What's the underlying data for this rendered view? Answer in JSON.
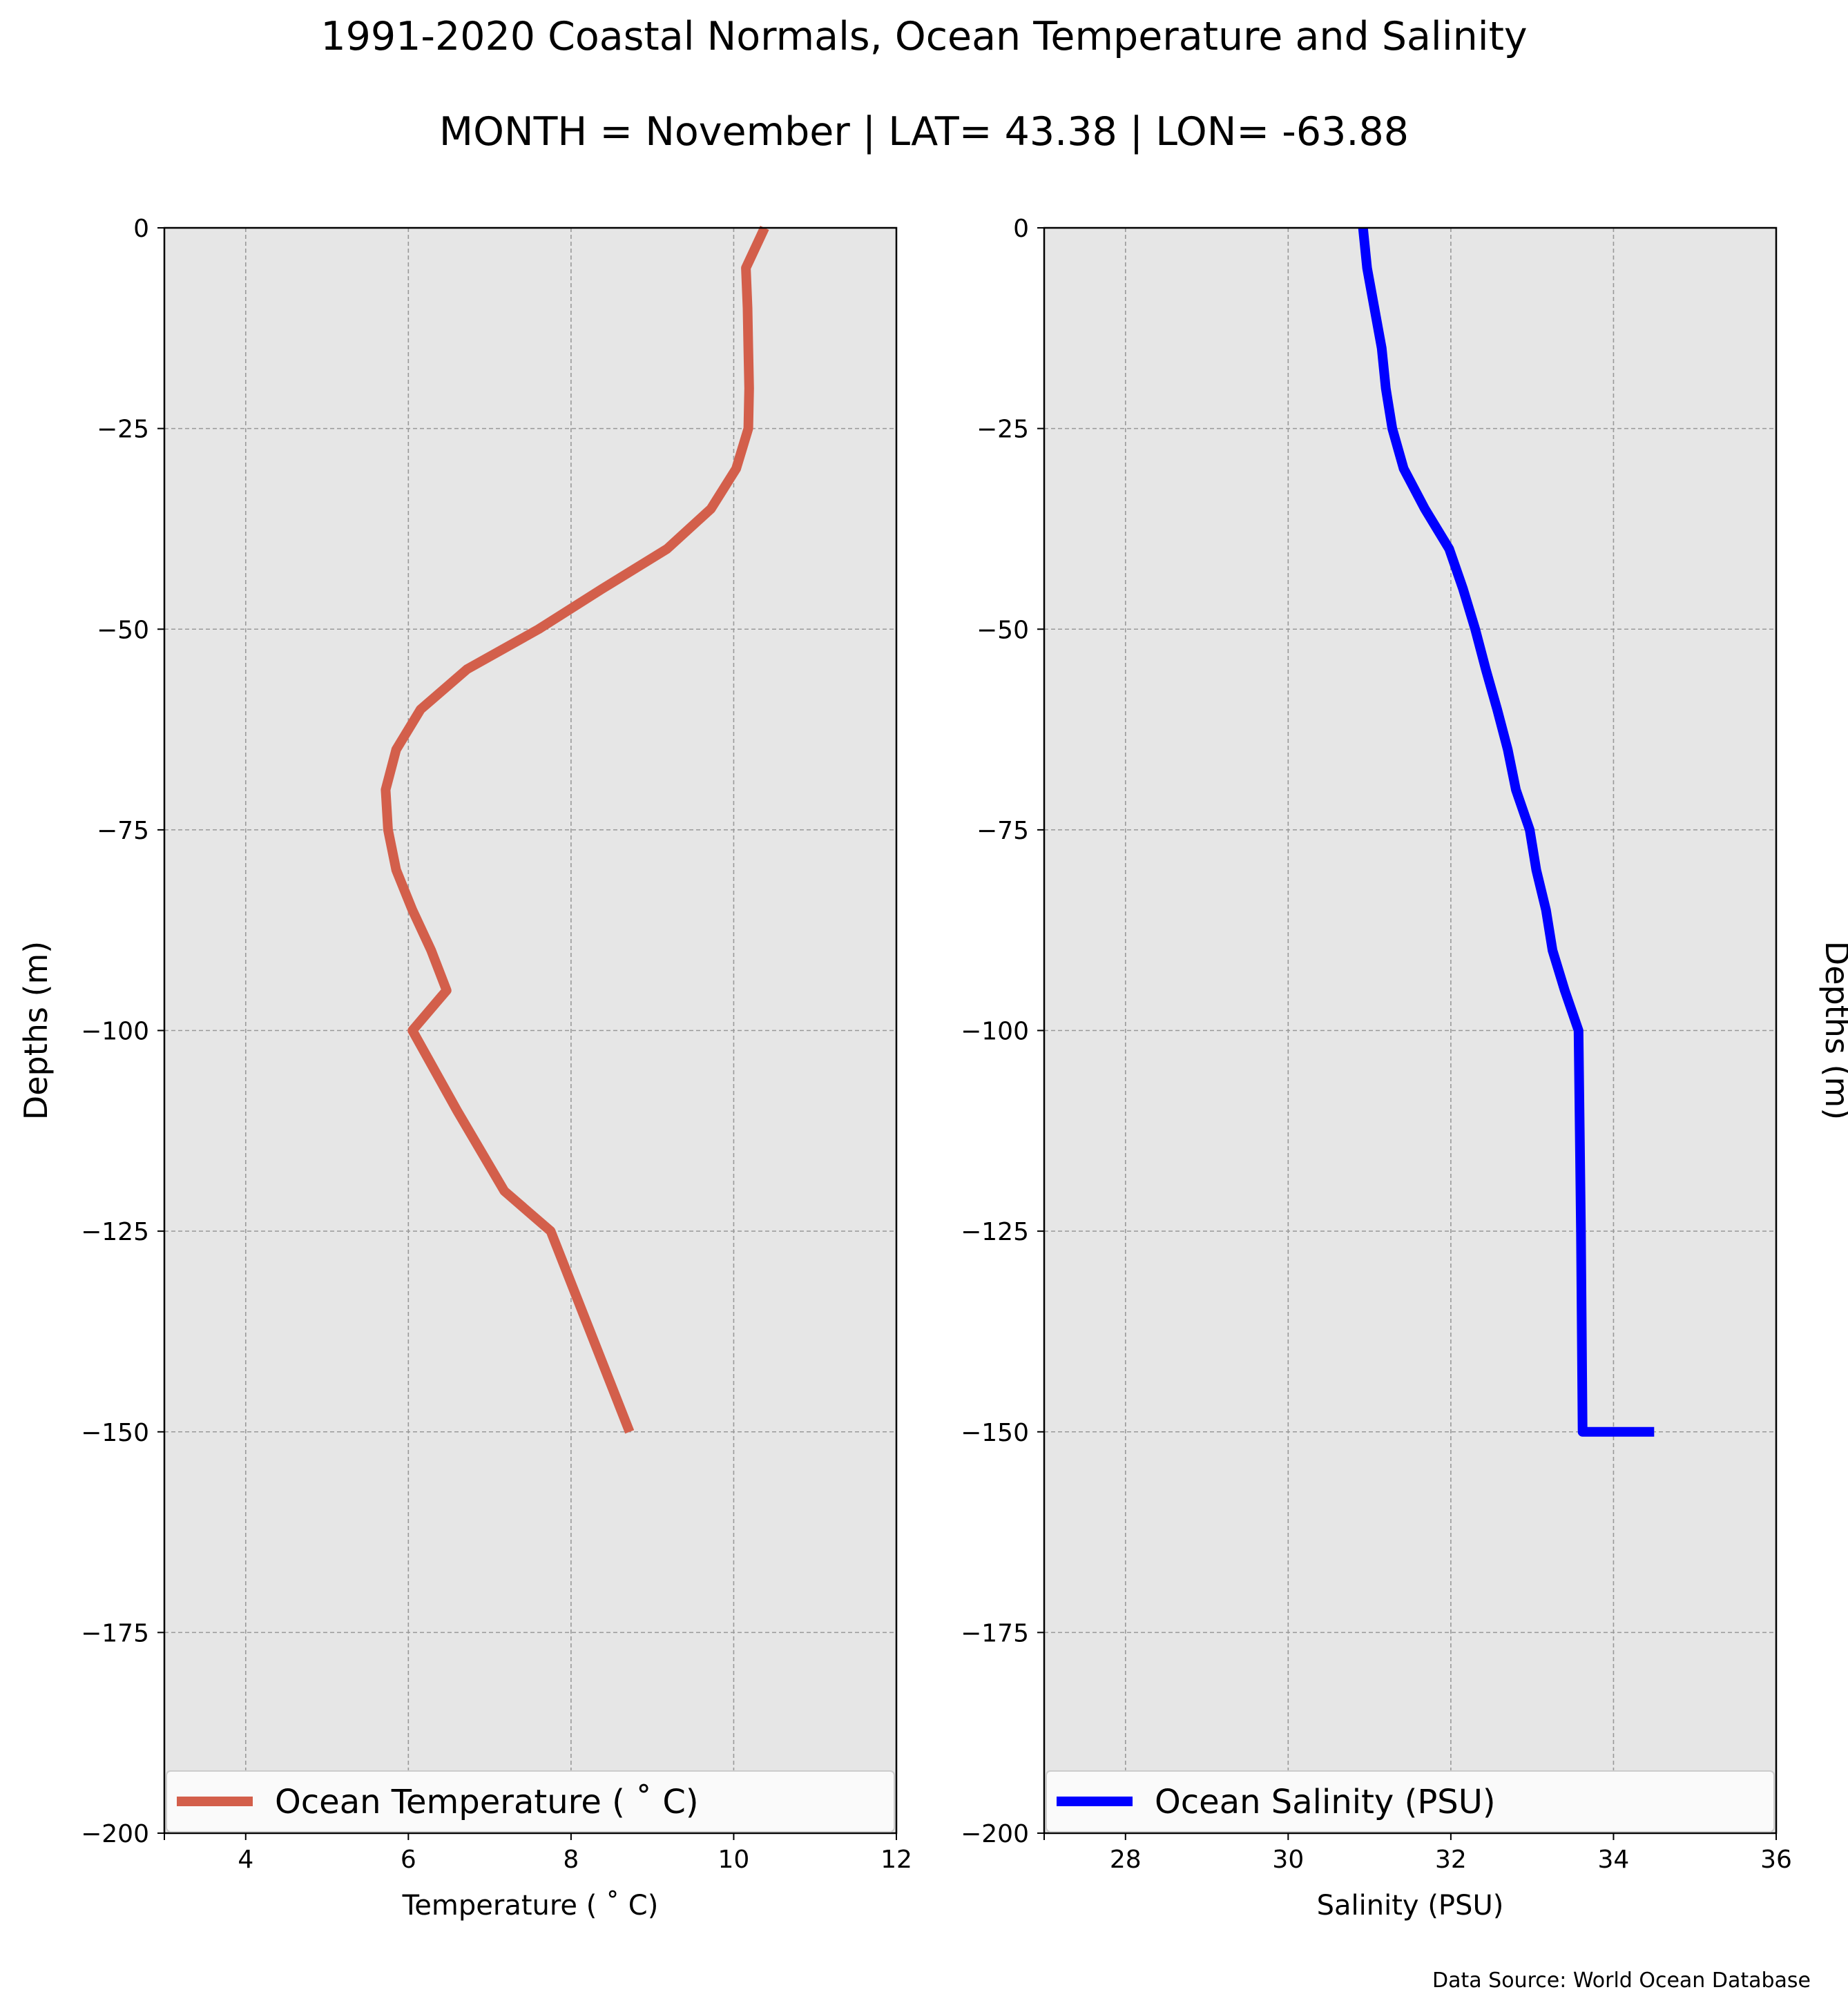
{
  "figure": {
    "title_line1": "1991-2020 Coastal Normals, Ocean Temperature and Salinity",
    "title_line2": "MONTH = November | LAT= 43.38 | LON= -63.88",
    "source": "Data Source: World Ocean Database",
    "background": "#e6e6e6",
    "grid_color": "#999999"
  },
  "chart_data": [
    {
      "type": "line",
      "xlabel": "Temperature ($^\\circ$C)",
      "xlabel_display": "Temperature ( ˚ C)",
      "ylabel": "Depths (m)",
      "xlim": [
        3,
        12
      ],
      "ylim": [
        -200,
        0
      ],
      "xticks": [
        4,
        6,
        8,
        10,
        12
      ],
      "yticks": [
        0,
        -25,
        -50,
        -75,
        -100,
        -125,
        -150,
        -175,
        -200
      ],
      "grid": true,
      "legend_position": "lower-center",
      "series": [
        {
          "name": "Ocean Temperature ( ˚ C)",
          "color": "#d35f4b",
          "x": [
            10.38,
            10.15,
            10.17,
            10.18,
            10.19,
            10.18,
            10.03,
            9.72,
            9.18,
            8.38,
            7.6,
            6.72,
            6.15,
            5.85,
            5.72,
            5.75,
            5.85,
            6.05,
            6.28,
            6.47,
            6.05,
            6.6,
            7.18,
            7.75,
            8.72
          ],
          "y": [
            0,
            -5,
            -10,
            -15,
            -20,
            -25,
            -30,
            -35,
            -40,
            -45,
            -50,
            -55,
            -60,
            -65,
            -70,
            -75,
            -80,
            -85,
            -90,
            -95,
            -100,
            -110,
            -120,
            -125,
            -150
          ]
        }
      ]
    },
    {
      "type": "line",
      "xlabel": "Salinity (PSU)",
      "ylabel": "Depths (m)",
      "xlim": [
        27,
        36
      ],
      "ylim": [
        -200,
        0
      ],
      "xticks": [
        28,
        30,
        32,
        34,
        36
      ],
      "yticks": [
        0,
        -25,
        -50,
        -75,
        -100,
        -125,
        -150,
        -175,
        -200
      ],
      "grid": true,
      "legend_position": "lower-center",
      "series": [
        {
          "name": "Ocean Salinity (PSU)",
          "color": "#0000ff",
          "x": [
            30.92,
            30.97,
            31.06,
            31.15,
            31.2,
            31.28,
            31.42,
            31.68,
            31.98,
            32.15,
            32.3,
            32.43,
            32.57,
            32.7,
            32.8,
            32.97,
            33.05,
            33.17,
            33.25,
            33.4,
            33.57,
            33.6,
            33.62,
            34.0,
            34.5
          ],
          "y": [
            0,
            -5,
            -10,
            -15,
            -20,
            -25,
            -30,
            -35,
            -40,
            -45,
            -50,
            -55,
            -60,
            -65,
            -70,
            -75,
            -80,
            -85,
            -90,
            -95,
            -100,
            -125,
            -150,
            -150,
            -150
          ]
        }
      ]
    }
  ]
}
